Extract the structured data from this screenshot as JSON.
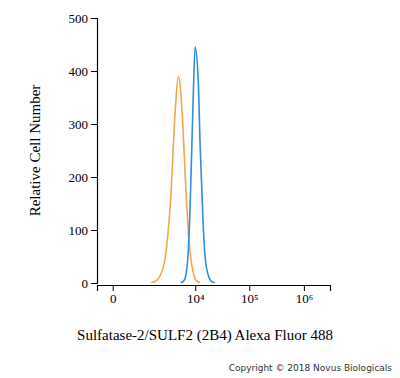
{
  "chart_data": {
    "type": "line",
    "x_label": "Sulfatase-2/SULF2 (2B4) Alexa Fluor 488",
    "y_label": "Relative Cell Number",
    "annotation": "Copyright © 2018 Novus Biologicals",
    "log": "x",
    "xlim": [
      -300,
      3000000
    ],
    "xticks": [
      {
        "value": 0,
        "label": "0"
      },
      {
        "value": 10000,
        "label": "10⁴"
      },
      {
        "value": 100000,
        "label": "10⁵"
      },
      {
        "value": 1000000,
        "label": "10⁶"
      }
    ],
    "ylim": [
      0,
      500
    ],
    "yticks": [
      0,
      100,
      200,
      300,
      400,
      500
    ],
    "series": [
      {
        "color": "#f5a54a",
        "x": [
          1250,
          1615,
          2070,
          2620,
          3300,
          4160,
          4740,
          5200,
          5920,
          6470,
          7370,
          8030,
          9150,
          9960,
          11400,
          12350
        ],
        "values": [
          0,
          3,
          15,
          50,
          150,
          330,
          390,
          370,
          280,
          200,
          100,
          55,
          20,
          8,
          2,
          0
        ]
      },
      {
        "color": "#2f8fd8",
        "x": [
          5200,
          5920,
          6470,
          7370,
          8030,
          9150,
          9960,
          11400,
          12350,
          14100,
          15300,
          17500,
          20600,
          23500
        ],
        "values": [
          0,
          3,
          10,
          60,
          150,
          350,
          445,
          380,
          260,
          110,
          50,
          15,
          2,
          0
        ]
      }
    ]
  }
}
